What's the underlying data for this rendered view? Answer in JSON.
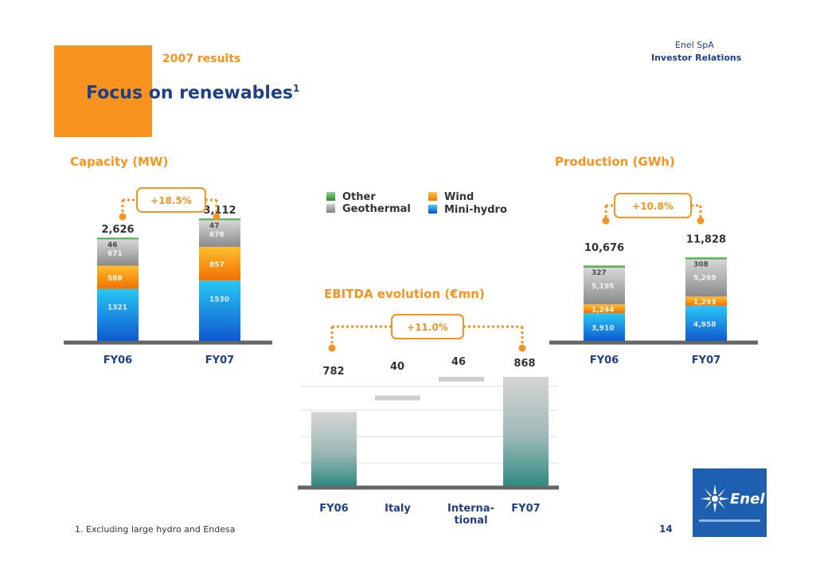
{
  "header": {
    "subtitle": "2007 results",
    "title": "Focus on renewables",
    "title_footnote_mark": "1",
    "company": "Enel SpA",
    "department": "Investor Relations"
  },
  "legend": {
    "items": [
      {
        "label": "Other",
        "color": "#4caf50"
      },
      {
        "label": "Wind",
        "color": "#f7931e"
      },
      {
        "label": "Geothermal",
        "color": "#a0a0a0"
      },
      {
        "label": "Mini-hydro",
        "color": "#1e90e6"
      }
    ]
  },
  "footnote": "1. Excluding large hydro and Endesa",
  "page_number": "14",
  "logo": {
    "text": "Enel",
    "icon": "enel-logo-icon"
  },
  "colors": {
    "orange": "#f7931e",
    "navy": "#1f3f86",
    "other": "#4caf50",
    "geothermal": "#a0a0a0",
    "wind": "#f7931e",
    "minihydro": "#1e90e6",
    "ebitda_bar": "#5aa39a"
  },
  "chart_data": [
    {
      "id": "capacity",
      "type": "bar",
      "stacked": true,
      "title": "Capacity (MW)",
      "categories": [
        "FY06",
        "FY07"
      ],
      "series": [
        {
          "name": "Mini-hydro",
          "values": [
            1321,
            1530
          ]
        },
        {
          "name": "Wind",
          "values": [
            588,
            857
          ]
        },
        {
          "name": "Geothermal",
          "values": [
            671,
            678
          ]
        },
        {
          "name": "Other",
          "values": [
            46,
            47
          ]
        }
      ],
      "totals": [
        "2,626",
        "3,112"
      ],
      "segment_labels": [
        [
          "1321",
          "588",
          "671",
          "46"
        ],
        [
          "1530",
          "857",
          "678",
          "47"
        ]
      ],
      "growth": "+18.5%"
    },
    {
      "id": "production",
      "type": "bar",
      "stacked": true,
      "title": "Production (GWh)",
      "categories": [
        "FY06",
        "FY07"
      ],
      "series": [
        {
          "name": "Mini-hydro",
          "values": [
            3910,
            4958
          ]
        },
        {
          "name": "Wind",
          "values": [
            1244,
            1293
          ]
        },
        {
          "name": "Geothermal",
          "values": [
            5195,
            5269
          ]
        },
        {
          "name": "Other",
          "values": [
            327,
            308
          ]
        }
      ],
      "totals": [
        "10,676",
        "11,828"
      ],
      "segment_labels": [
        [
          "3,910",
          "1,244",
          "5,195",
          "327"
        ],
        [
          "4,958",
          "1,293",
          "5,269",
          "308"
        ]
      ],
      "growth": "+10.8%"
    },
    {
      "id": "ebitda",
      "type": "bar",
      "subtype": "waterfall",
      "title": "EBITDA evolution (€mn)",
      "categories": [
        "FY06",
        "Italy",
        "Interna-\ntional",
        "FY07"
      ],
      "values": [
        782,
        40,
        46,
        868
      ],
      "labels": [
        "782",
        "40",
        "46",
        "868"
      ],
      "growth": "+11.0%"
    }
  ]
}
